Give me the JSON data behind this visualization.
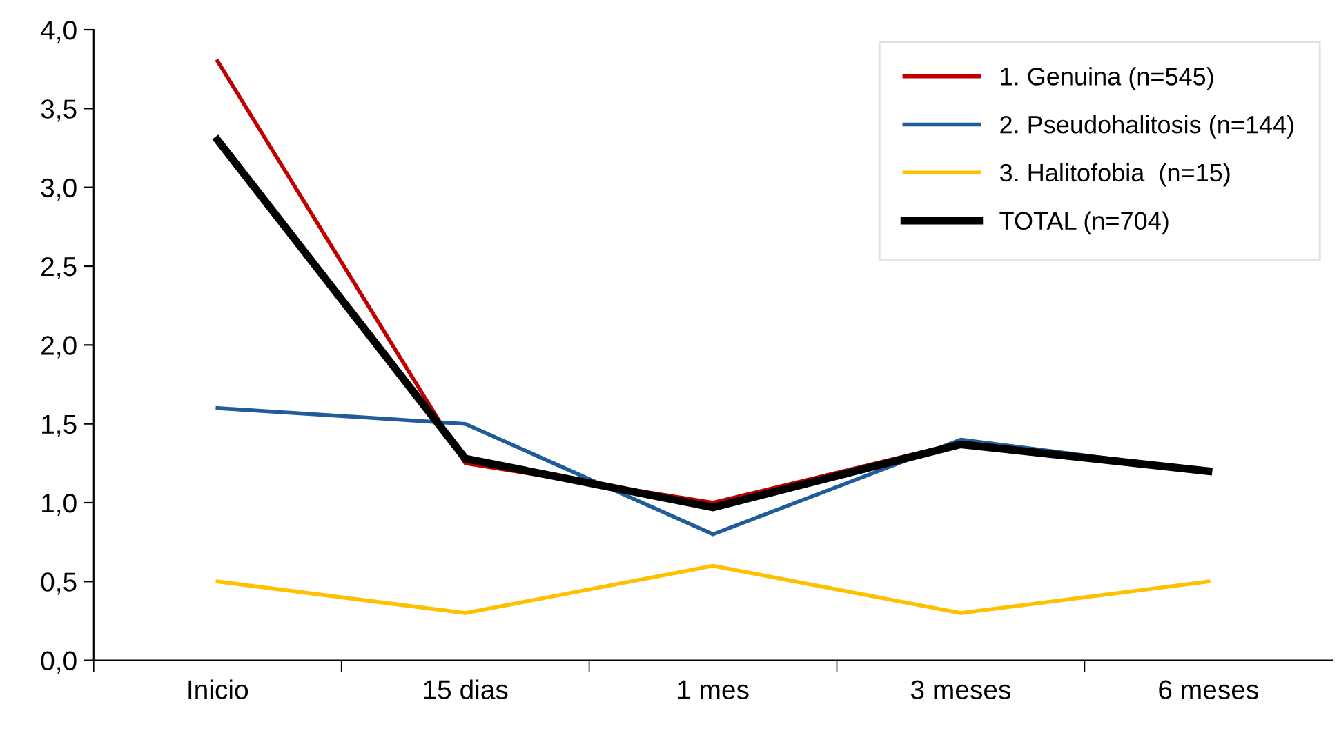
{
  "chart_data": {
    "type": "line",
    "categories": [
      "Inicio",
      "15 dias",
      "1 mes",
      "3 meses",
      "6 meses"
    ],
    "series": [
      {
        "name": "1. Genuina (n=545)",
        "color": "#c00000",
        "values": [
          3.8,
          1.25,
          1.0,
          1.38,
          1.2
        ]
      },
      {
        "name": "2. Pseudohalitosis (n=144)",
        "color": "#1f5c99",
        "values": [
          1.6,
          1.5,
          0.8,
          1.4,
          1.2
        ]
      },
      {
        "name": "3. Halitofobia  (n=15)",
        "color": "#ffc000",
        "values": [
          0.5,
          0.3,
          0.6,
          0.3,
          0.5
        ]
      },
      {
        "name": "TOTAL (n=704)",
        "color": "#000000",
        "values": [
          3.3,
          1.28,
          0.97,
          1.37,
          1.2
        ]
      }
    ],
    "ylim": [
      0,
      4
    ],
    "yticks": [
      {
        "value": 0,
        "label": "0,0"
      },
      {
        "value": 0.5,
        "label": "0,5"
      },
      {
        "value": 1,
        "label": "1,0"
      },
      {
        "value": 1.5,
        "label": "1,5"
      },
      {
        "value": 2,
        "label": "2,0"
      },
      {
        "value": 2.5,
        "label": "2,5"
      },
      {
        "value": 3,
        "label": "3,0"
      },
      {
        "value": 3.5,
        "label": "3,5"
      },
      {
        "value": 4,
        "label": "4,0"
      }
    ],
    "grid": false,
    "legend": "top right",
    "marker": "none",
    "line_style": "solid"
  }
}
